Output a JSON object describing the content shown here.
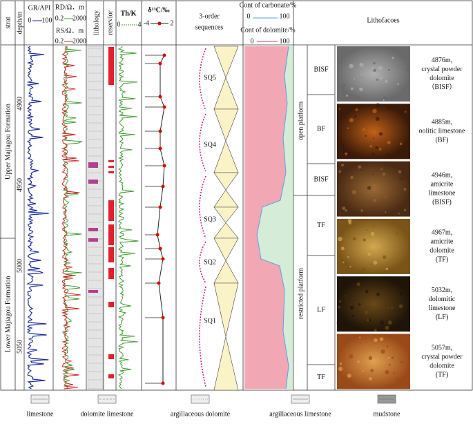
{
  "header": {
    "strat": "strat",
    "depth": "depth/m",
    "gr": "GR/API",
    "gr_min": "0",
    "gr_max": "100",
    "rd": "RD/Ω．m",
    "rd_min": "0.2",
    "rd_max": "2000",
    "rs": "RS/Ω．m",
    "rs_min": "0.2",
    "rs_max": "2000",
    "lithology": "lithology",
    "reservoir": "reservior",
    "thk": "Th/K",
    "thk_min": "0",
    "thk_max": "4",
    "c13": "δ¹³C/‰",
    "c13_min": "-4",
    "c13_max": "2",
    "seq1": "3-order",
    "seq2": "sequences",
    "carb": "Cont of carbonate/%",
    "carb_min": "0",
    "carb_max": "100",
    "dolo": "Cont of dolomite/%",
    "dolo_min": "0",
    "dolo_max": "100",
    "lithofacies": "Lithofacoes"
  },
  "strat": [
    "Upper Majiagou Formation",
    "Lower Majiagou Formation"
  ],
  "depth_ticks": [
    "4900",
    "4950",
    "5000",
    "5050"
  ],
  "sequences": [
    "SQ5",
    "SQ4",
    "SQ3",
    "SQ2",
    "SQ1"
  ],
  "platforms": [
    "open platform",
    "restricted platform"
  ],
  "facies": [
    "BISF",
    "BF",
    "BISF",
    "TF",
    "LF",
    "TF"
  ],
  "photos": [
    {
      "lines": [
        "4876m,",
        "crystal powder",
        "dolomite",
        "（BISF）"
      ]
    },
    {
      "lines": [
        "4885m,",
        "oolitic limestone",
        "(BF)"
      ]
    },
    {
      "lines": [
        "4946m,",
        "amicrite",
        "limestone",
        "(BISF)"
      ]
    },
    {
      "lines": [
        "4967m,",
        "amicrite",
        "dolomite",
        "(TF)"
      ]
    },
    {
      "lines": [
        "5032m,",
        "dolomitic",
        "limestone",
        "(LF)"
      ]
    },
    {
      "lines": [
        "5057m,",
        "crystal powder",
        "dolomite",
        "(TF)"
      ]
    }
  ],
  "legend": [
    "limestone",
    "dolomite limestone",
    "argillaceous dolomite",
    "argillaceous limestone",
    "mudstone"
  ]
}
